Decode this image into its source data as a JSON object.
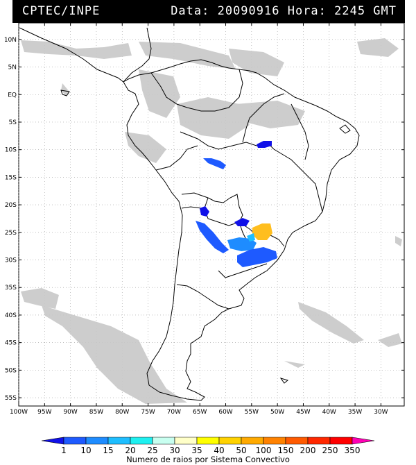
{
  "header": {
    "left": "CPTEC/INPE",
    "right": "Data: 20090916 Hora: 2245 GMT"
  },
  "lat_labels": [
    "10N",
    "5N",
    "EQ",
    "5S",
    "10S",
    "15S",
    "20S",
    "25S",
    "30S",
    "35S",
    "40S",
    "45S",
    "50S",
    "55S"
  ],
  "lon_labels": [
    "100W",
    "95W",
    "90W",
    "85W",
    "80W",
    "75W",
    "70W",
    "65W",
    "60W",
    "55W",
    "50W",
    "45W",
    "40W",
    "35W",
    "30W"
  ],
  "colorbar": {
    "labels": [
      "1",
      "10",
      "15",
      "20",
      "25",
      "30",
      "35",
      "40",
      "50",
      "100",
      "150",
      "200",
      "250",
      "350"
    ],
    "colors": [
      "#1010e8",
      "#1e5aff",
      "#1e8cff",
      "#1ebeff",
      "#1ef0f0",
      "#c8fff0",
      "#ffffc8",
      "#ffff00",
      "#ffd200",
      "#ffaa00",
      "#ff8200",
      "#ff5a00",
      "#ff2800",
      "#ff0000",
      "#ff00b4"
    ],
    "caption": "Numero de raios por Sistema Convectivo"
  },
  "colors": {
    "cloud": "#c8c8c8",
    "coast": "#000000",
    "header_bg": "#000000"
  }
}
